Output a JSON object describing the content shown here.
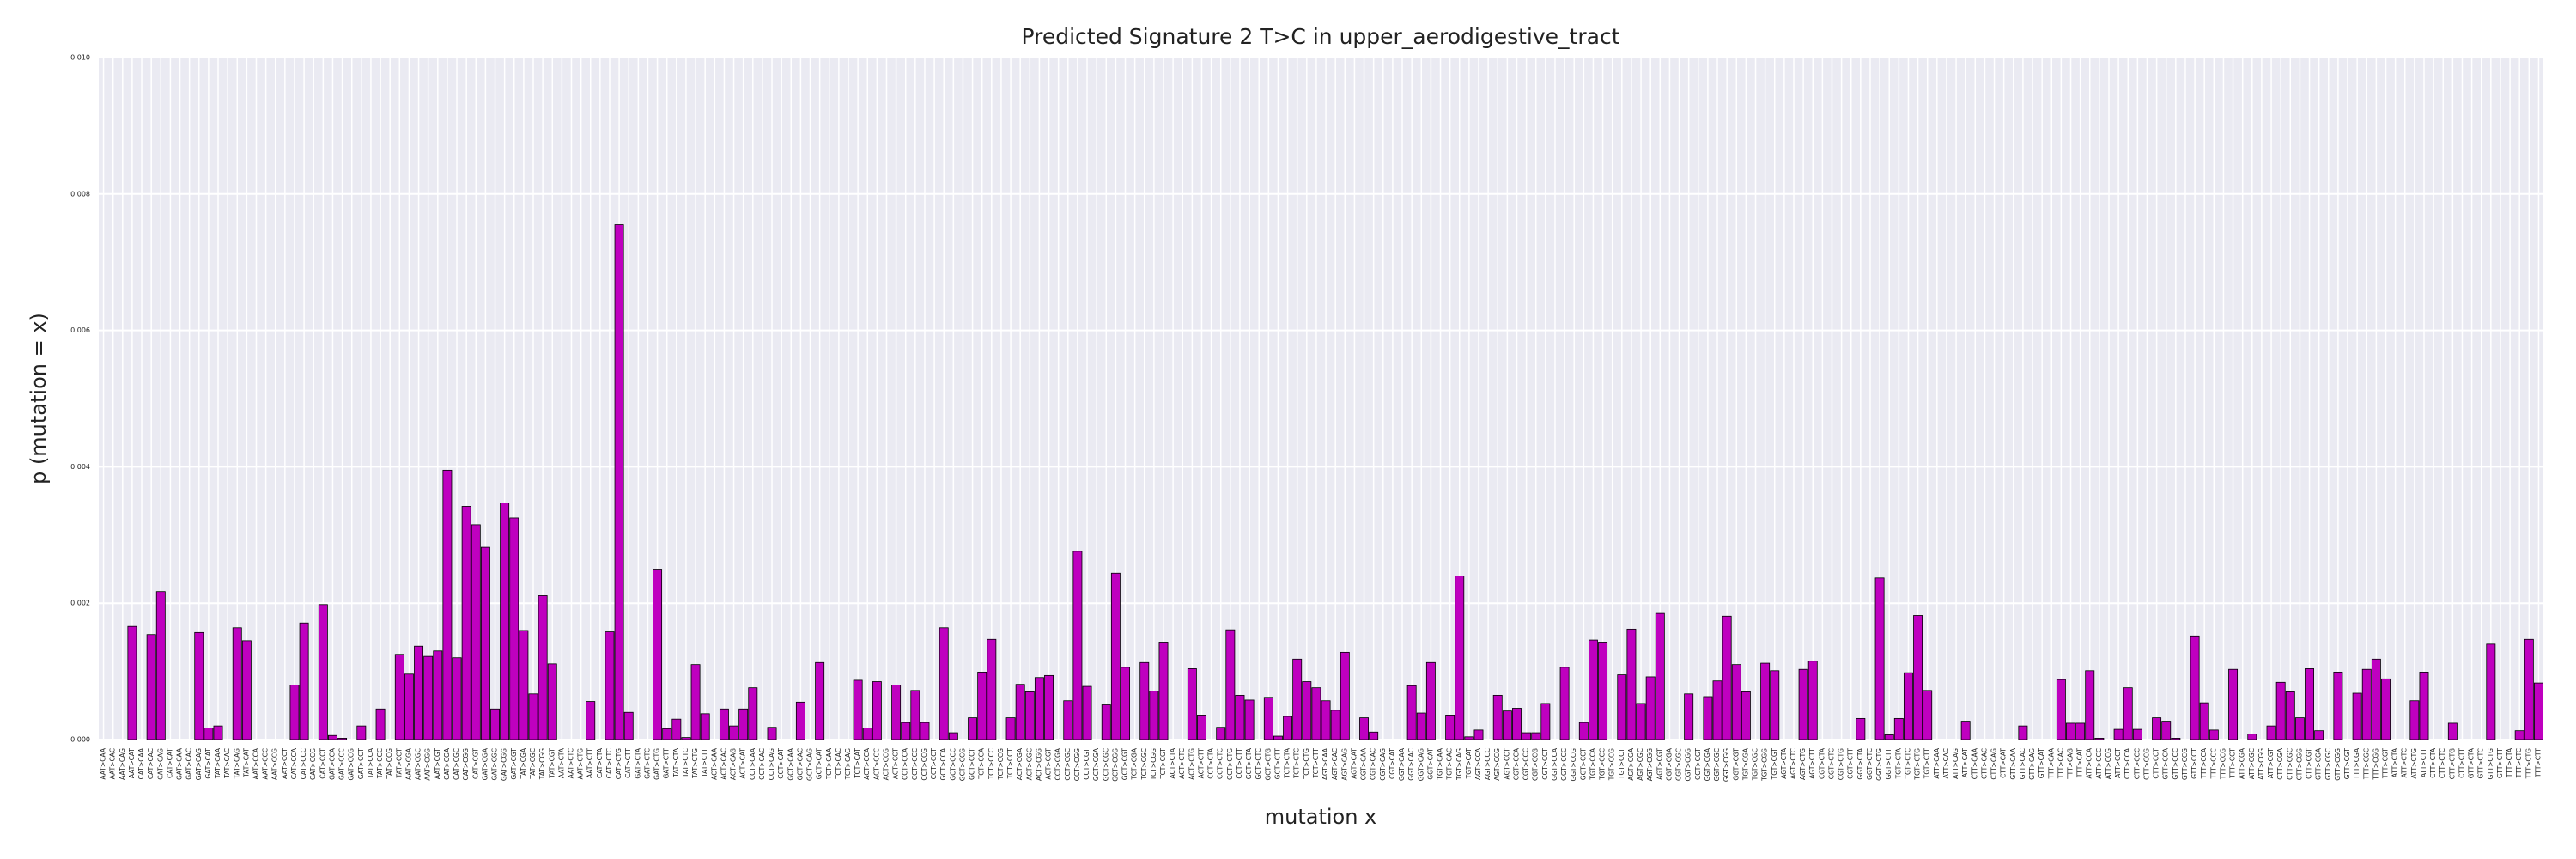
{
  "chart_data": {
    "type": "bar",
    "title": "Predicted Signature 2 T>C in upper_aerodigestive_tract",
    "xlabel": "mutation x",
    "ylabel": "p (mutation = x)",
    "color": "#bf00bf",
    "edgecolor": "#000000",
    "grid": true,
    "ylim": [
      0,
      0.01
    ],
    "yticks": [
      {
        "value": 0,
        "label": "0.000"
      },
      {
        "value": 0.002,
        "label": "0.002"
      },
      {
        "value": 0.004,
        "label": "0.004"
      },
      {
        "value": 0.006,
        "label": "0.006"
      },
      {
        "value": 0.008,
        "label": "0.008"
      },
      {
        "value": 0.01,
        "label": "0.010"
      }
    ],
    "categories": [
      "AAT>CAA",
      "AAT>CAC",
      "AAT>CAG",
      "AAT>CAT",
      "CAT>CAA",
      "CAT>CAC",
      "CAT>CAG",
      "CAT>CAT",
      "GAT>CAA",
      "GAT>CAC",
      "GAT>CAG",
      "GAT>CAT",
      "TAT>CAA",
      "TAT>CAC",
      "TAT>CAG",
      "TAT>CAT",
      "AAT>CCA",
      "AAT>CCC",
      "AAT>CCG",
      "AAT>CCT",
      "CAT>CCA",
      "CAT>CCC",
      "CAT>CCG",
      "CAT>CCT",
      "GAT>CCA",
      "GAT>CCC",
      "GAT>CCG",
      "GAT>CCT",
      "TAT>CCA",
      "TAT>CCC",
      "TAT>CCG",
      "TAT>CCT",
      "AAT>CGA",
      "AAT>CGC",
      "AAT>CGG",
      "AAT>CGT",
      "CAT>CGA",
      "CAT>CGC",
      "CAT>CGG",
      "CAT>CGT",
      "GAT>CGA",
      "GAT>CGC",
      "GAT>CGG",
      "GAT>CGT",
      "TAT>CGA",
      "TAT>CGC",
      "TAT>CGG",
      "TAT>CGT",
      "AAT>CTA",
      "AAT>CTC",
      "AAT>CTG",
      "AAT>CTT",
      "CAT>CTA",
      "CAT>CTC",
      "CAT>CTG",
      "CAT>CTT",
      "GAT>CTA",
      "GAT>CTC",
      "GAT>CTG",
      "GAT>CTT",
      "TAT>CTA",
      "TAT>CTC",
      "TAT>CTG",
      "TAT>CTT",
      "ACT>CAA",
      "ACT>CAC",
      "ACT>CAG",
      "ACT>CAT",
      "CCT>CAA",
      "CCT>CAC",
      "CCT>CAG",
      "CCT>CAT",
      "GCT>CAA",
      "GCT>CAC",
      "GCT>CAG",
      "GCT>CAT",
      "TCT>CAA",
      "TCT>CAC",
      "TCT>CAG",
      "TCT>CAT",
      "ACT>CCA",
      "ACT>CCC",
      "ACT>CCG",
      "ACT>CCT",
      "CCT>CCA",
      "CCT>CCC",
      "CCT>CCG",
      "CCT>CCT",
      "GCT>CCA",
      "GCT>CCC",
      "GCT>CCG",
      "GCT>CCT",
      "TCT>CCA",
      "TCT>CCC",
      "TCT>CCG",
      "TCT>CCT",
      "ACT>CGA",
      "ACT>CGC",
      "ACT>CGG",
      "ACT>CGT",
      "CCT>CGA",
      "CCT>CGC",
      "CCT>CGG",
      "CCT>CGT",
      "GCT>CGA",
      "GCT>CGC",
      "GCT>CGG",
      "GCT>CGT",
      "TCT>CGA",
      "TCT>CGC",
      "TCT>CGG",
      "TCT>CGT",
      "ACT>CTA",
      "ACT>CTC",
      "ACT>CTG",
      "ACT>CTT",
      "CCT>CTA",
      "CCT>CTC",
      "CCT>CTG",
      "CCT>CTT",
      "GCT>CTA",
      "GCT>CTC",
      "GCT>CTG",
      "GCT>CTT",
      "TCT>CTA",
      "TCT>CTC",
      "TCT>CTG",
      "TCT>CTT",
      "AGT>CAA",
      "AGT>CAC",
      "AGT>CAG",
      "AGT>CAT",
      "CGT>CAA",
      "CGT>CAC",
      "CGT>CAG",
      "CGT>CAT",
      "GGT>CAA",
      "GGT>CAC",
      "GGT>CAG",
      "GGT>CAT",
      "TGT>CAA",
      "TGT>CAC",
      "TGT>CAG",
      "TGT>CAT",
      "AGT>CCA",
      "AGT>CCC",
      "AGT>CCG",
      "AGT>CCT",
      "CGT>CCA",
      "CGT>CCC",
      "CGT>CCG",
      "CGT>CCT",
      "GGT>CCA",
      "GGT>CCC",
      "GGT>CCG",
      "GGT>CCT",
      "TGT>CCA",
      "TGT>CCC",
      "TGT>CCG",
      "TGT>CCT",
      "AGT>CGA",
      "AGT>CGC",
      "AGT>CGG",
      "AGT>CGT",
      "CGT>CGA",
      "CGT>CGC",
      "CGT>CGG",
      "CGT>CGT",
      "GGT>CGA",
      "GGT>CGC",
      "GGT>CGG",
      "GGT>CGT",
      "TGT>CGA",
      "TGT>CGC",
      "TGT>CGG",
      "TGT>CGT",
      "AGT>CTA",
      "AGT>CTC",
      "AGT>CTG",
      "AGT>CTT",
      "CGT>CTA",
      "CGT>CTC",
      "CGT>CTG",
      "CGT>CTT",
      "GGT>CTA",
      "GGT>CTC",
      "GGT>CTG",
      "GGT>CTT",
      "TGT>CTA",
      "TGT>CTC",
      "TGT>CTG",
      "TGT>CTT",
      "ATT>CAA",
      "ATT>CAC",
      "ATT>CAG",
      "ATT>CAT",
      "CTT>CAA",
      "CTT>CAC",
      "CTT>CAG",
      "CTT>CAT",
      "GTT>CAA",
      "GTT>CAC",
      "GTT>CAG",
      "GTT>CAT",
      "TTT>CAA",
      "TTT>CAC",
      "TTT>CAG",
      "TTT>CAT",
      "ATT>CCA",
      "ATT>CCC",
      "ATT>CCG",
      "ATT>CCT",
      "CTT>CCA",
      "CTT>CCC",
      "CTT>CCG",
      "CTT>CCT",
      "GTT>CCA",
      "GTT>CCC",
      "GTT>CCG",
      "GTT>CCT",
      "TTT>CCA",
      "TTT>CCC",
      "TTT>CCG",
      "TTT>CCT",
      "ATT>CGA",
      "ATT>CGC",
      "ATT>CGG",
      "ATT>CGT",
      "CTT>CGA",
      "CTT>CGC",
      "CTT>CGG",
      "CTT>CGT",
      "GTT>CGA",
      "GTT>CGC",
      "GTT>CGG",
      "GTT>CGT",
      "TTT>CGA",
      "TTT>CGC",
      "TTT>CGG",
      "TTT>CGT",
      "ATT>CTA",
      "ATT>CTC",
      "ATT>CTG",
      "ATT>CTT",
      "CTT>CTA",
      "CTT>CTC",
      "CTT>CTG",
      "CTT>CTT",
      "GTT>CTA",
      "GTT>CTC",
      "GTT>CTG",
      "GTT>CTT",
      "TTT>CTA",
      "TTT>CTC",
      "TTT>CTG",
      "TTT>CTT"
    ],
    "values": [
      0,
      0,
      0,
      0.00166,
      0,
      0.00154,
      0.00217,
      0,
      0,
      0,
      0.00157,
      0.00017,
      0.0002,
      0,
      0.00164,
      0.00145,
      0,
      0,
      0,
      0,
      0.0008,
      0.00171,
      0,
      0.00198,
      6e-05,
      2e-05,
      0,
      0.0002,
      0,
      0.00045,
      0,
      0.00125,
      0.00096,
      0.00137,
      0.00122,
      0.0013,
      0.00395,
      0.0012,
      0.00342,
      0.00315,
      0.00282,
      0.00045,
      0.00347,
      0.00325,
      0.0016,
      0.00067,
      0.00211,
      0.00111,
      0,
      0,
      0,
      0.00056,
      0,
      0.00158,
      0.00755,
      0.0004,
      0,
      0,
      0.0025,
      0.00016,
      0.0003,
      3e-05,
      0.0011,
      0.00038,
      0,
      0.00045,
      0.0002,
      0.00045,
      0.00076,
      0,
      0.00018,
      0,
      0,
      0.00055,
      0,
      0.00113,
      0,
      0,
      0,
      0.00087,
      0.00017,
      0.00085,
      0,
      0.0008,
      0.00025,
      0.00072,
      0.00025,
      0,
      0.00164,
      0.0001,
      0,
      0.00032,
      0.00099,
      0.00147,
      0,
      0.00032,
      0.00081,
      0.0007,
      0.00091,
      0.00094,
      0,
      0.00057,
      0.00276,
      0.00078,
      0,
      0.00051,
      0.00244,
      0.00106,
      0,
      0.00113,
      0.00071,
      0.00143,
      0,
      0,
      0.00104,
      0.00036,
      0,
      0.00018,
      0.00161,
      0.00065,
      0.00058,
      0,
      0.00062,
      5e-05,
      0.00034,
      0.00118,
      0.00085,
      0.00076,
      0.00057,
      0.00043,
      0.00128,
      0,
      0.00032,
      0.00011,
      0,
      0,
      0,
      0.00079,
      0.00039,
      0.00113,
      0,
      0.00036,
      0.0024,
      4e-05,
      0.00014,
      0,
      0.00065,
      0.00042,
      0.00046,
      0.0001,
      0.0001,
      0.00053,
      0,
      0.00106,
      0,
      0.00025,
      0.00146,
      0.00143,
      0,
      0.00095,
      0.00162,
      0.00053,
      0.00092,
      0.00185,
      0,
      0,
      0.00067,
      0,
      0.00063,
      0.00086,
      0.00181,
      0.0011,
      0.0007,
      0,
      0.00112,
      0.00101,
      0,
      0,
      0.00103,
      0.00115,
      0,
      0,
      0,
      0,
      0.00031,
      0,
      0.00237,
      7e-05,
      0.00031,
      0.00098,
      0.00182,
      0.00072,
      0,
      0,
      0,
      0.00027,
      0,
      0,
      0,
      0,
      0,
      0.0002,
      0,
      0,
      0,
      0.00088,
      0.00024,
      0.00024,
      0.00101,
      2e-05,
      0,
      0.00015,
      0.00076,
      0.00015,
      0,
      0.00032,
      0.00027,
      2e-05,
      0,
      0.00152,
      0.00054,
      0.00014,
      0,
      0.00103,
      0,
      8e-05,
      0,
      0.0002,
      0.00084,
      0.0007,
      0.00032,
      0.00104,
      0.00013,
      0,
      0.00099,
      0,
      0.00068,
      0.00103,
      0.00118,
      0.00089,
      0,
      0,
      0.00057,
      0.00099,
      0,
      0,
      0.00024,
      0,
      0,
      0,
      0.0014,
      0,
      0,
      0.00013,
      0.00147,
      0.00083
    ]
  }
}
